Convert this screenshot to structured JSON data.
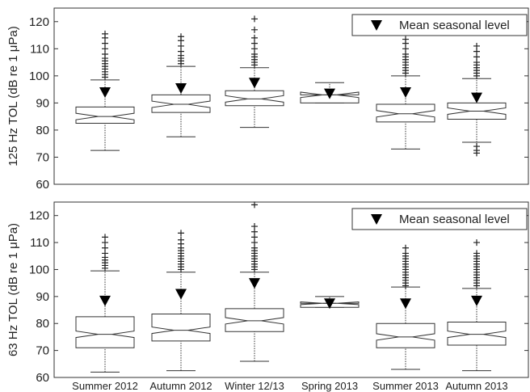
{
  "chart_data": [
    {
      "type": "box",
      "ylabel": "125 Hz TOL (dB re 1 μPa)",
      "ylim": [
        60,
        125
      ],
      "yticks": [
        60,
        70,
        80,
        90,
        100,
        110,
        120
      ],
      "legend": {
        "label": "Mean seasonal level",
        "placement": "top-right",
        "marker": "filled-down-triangle"
      },
      "categories": [
        "Summer 2012",
        "Autumn 2012",
        "Winter 12/13",
        "Spring 2013",
        "Summer 2013",
        "Autumn 2013"
      ],
      "boxes": [
        {
          "category": "Summer 2012",
          "whisker_low": 72.5,
          "q1": 82.5,
          "median": 85.0,
          "q3": 88.5,
          "whisker_high": 98.5,
          "mean": 94.0,
          "outliers_low": [],
          "outliers_high": [
            99.5,
            100.5,
            101.5,
            102.5,
            103.5,
            104.5,
            105.5,
            106.5,
            108,
            110,
            112,
            114,
            115.5
          ]
        },
        {
          "category": "Autumn 2012",
          "whisker_low": 77.5,
          "q1": 86.5,
          "median": 89.5,
          "q3": 93.0,
          "whisker_high": 103.5,
          "mean": 95.5,
          "outliers_low": [],
          "outliers_high": [
            104.5,
            105.5,
            106.5,
            107.5,
            109,
            111,
            113,
            114.5
          ]
        },
        {
          "category": "Winter 12/13",
          "whisker_low": 81.0,
          "q1": 89.0,
          "median": 91.5,
          "q3": 94.5,
          "whisker_high": 103.0,
          "mean": 97.5,
          "outliers_low": [],
          "outliers_high": [
            104,
            105,
            106,
            107,
            108,
            110,
            112,
            114,
            117,
            121
          ]
        },
        {
          "category": "Spring 2013",
          "whisker_low": 90.0,
          "q1": 90.0,
          "median": 93.0,
          "q3": 93.0,
          "whisker_high": 97.5,
          "mean": 93.5,
          "outliers_low": [],
          "outliers_high": []
        },
        {
          "category": "Summer 2013",
          "whisker_low": 73.0,
          "q1": 83.0,
          "median": 86.0,
          "q3": 89.5,
          "whisker_high": 100.0,
          "mean": 94.0,
          "outliers_low": [],
          "outliers_high": [
            101,
            102,
            103,
            104,
            105,
            106,
            107,
            108,
            110,
            112,
            113.5
          ]
        },
        {
          "category": "Autumn 2013",
          "whisker_low": 75.5,
          "q1": 84.0,
          "median": 87.0,
          "q3": 90.0,
          "whisker_high": 99.0,
          "mean": 92.0,
          "outliers_low": [
            71.5,
            72.5,
            74
          ],
          "outliers_high": [
            100,
            101,
            102,
            103,
            104,
            105,
            107,
            109,
            111
          ]
        }
      ]
    },
    {
      "type": "box",
      "ylabel": "63 Hz TOL (dB re 1 μPa)",
      "ylim": [
        60,
        125
      ],
      "yticks": [
        60,
        70,
        80,
        90,
        100,
        110,
        120
      ],
      "legend": {
        "label": "Mean seasonal level",
        "placement": "top-right",
        "marker": "filled-down-triangle"
      },
      "categories": [
        "Summer 2012",
        "Autumn 2012",
        "Winter 12/13",
        "Spring 2013",
        "Summer 2013",
        "Autumn 2013"
      ],
      "boxes": [
        {
          "category": "Summer 2012",
          "whisker_low": 62.0,
          "q1": 71.0,
          "median": 76.0,
          "q3": 82.5,
          "whisker_high": 99.5,
          "mean": 88.5,
          "outliers_low": [],
          "outliers_high": [
            100.5,
            101.5,
            102.5,
            103.5,
            104.5,
            106,
            108,
            110,
            112
          ]
        },
        {
          "category": "Autumn 2012",
          "whisker_low": 62.5,
          "q1": 73.5,
          "median": 77.5,
          "q3": 83.5,
          "whisker_high": 99.0,
          "mean": 91.0,
          "outliers_low": [],
          "outliers_high": [
            100,
            101,
            102,
            103,
            104,
            105,
            106,
            107,
            108,
            109.5,
            111,
            113.5
          ]
        },
        {
          "category": "Winter 12/13",
          "whisker_low": 66.0,
          "q1": 77.0,
          "median": 81.0,
          "q3": 85.5,
          "whisker_high": 99.0,
          "mean": 95.0,
          "outliers_low": [],
          "outliers_high": [
            100,
            101,
            102,
            103,
            104,
            105,
            106,
            107,
            108,
            110,
            112,
            114,
            116,
            124
          ]
        },
        {
          "category": "Spring 2013",
          "whisker_low": 86.0,
          "q1": 86.0,
          "median": 87.5,
          "q3": 87.5,
          "whisker_high": 90.0,
          "mean": 87.5,
          "outliers_low": [],
          "outliers_high": []
        },
        {
          "category": "Summer 2013",
          "whisker_low": 63.0,
          "q1": 71.0,
          "median": 75.0,
          "q3": 80.0,
          "whisker_high": 93.5,
          "mean": 87.5,
          "outliers_low": [],
          "outliers_high": [
            94,
            95,
            96,
            97,
            98,
            99,
            100,
            101,
            102,
            103,
            104,
            105,
            106,
            108
          ]
        },
        {
          "category": "Autumn 2013",
          "whisker_low": 62.5,
          "q1": 72.0,
          "median": 76.0,
          "q3": 80.5,
          "whisker_high": 93.0,
          "mean": 88.5,
          "outliers_low": [],
          "outliers_high": [
            94,
            95,
            96,
            97,
            98,
            99,
            100,
            101,
            102,
            103,
            104,
            105,
            106,
            110
          ]
        }
      ]
    }
  ]
}
